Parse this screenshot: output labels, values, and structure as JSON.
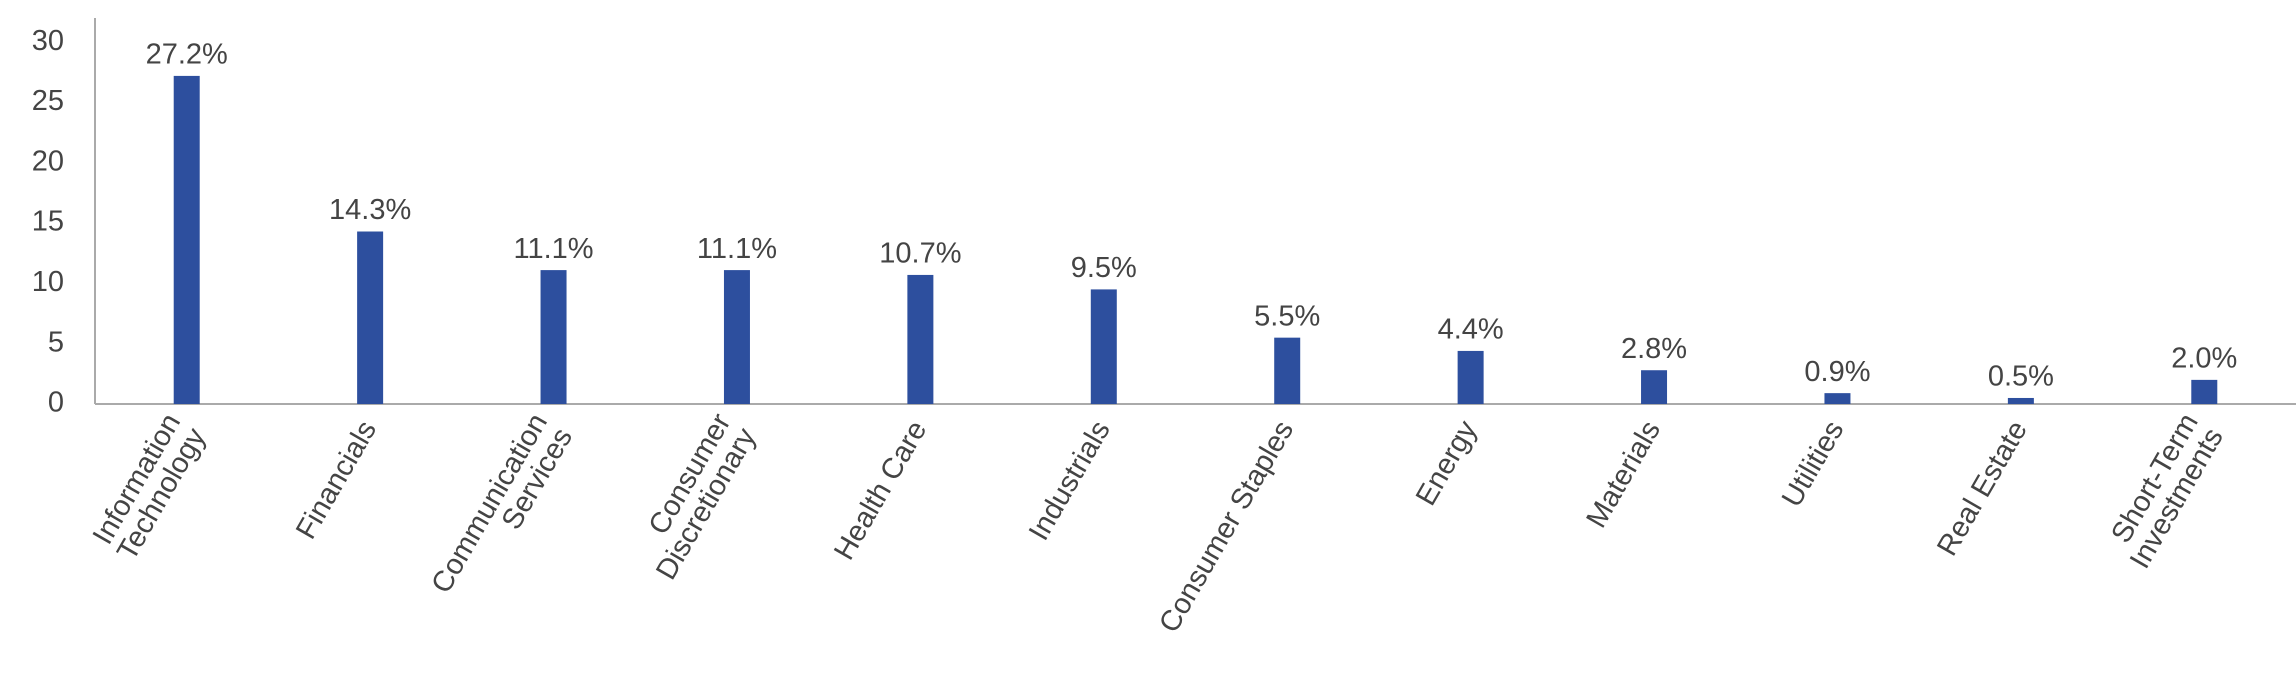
{
  "chart_data": {
    "type": "bar",
    "categories": [
      "Information\nTechnology",
      "Financials",
      "Communication\nServices",
      "Consumer\nDiscretionary",
      "Health Care",
      "Industrials",
      "Consumer Staples",
      "Energy",
      "Materials",
      "Utilities",
      "Real Estate",
      "Short-Term\nInvestments"
    ],
    "values": [
      27.2,
      14.3,
      11.1,
      11.1,
      10.7,
      9.5,
      5.5,
      4.4,
      2.8,
      0.9,
      0.5,
      2.0
    ],
    "value_labels": [
      "27.2%",
      "14.3%",
      "11.1%",
      "11.1%",
      "10.7%",
      "9.5%",
      "5.5%",
      "4.4%",
      "2.8%",
      "0.9%",
      "0.5%",
      "2.0%"
    ],
    "color": "#2d4f9e",
    "ylim": [
      0,
      32
    ],
    "yticks": [
      0,
      5,
      10,
      15,
      20,
      25,
      30
    ],
    "grid": false
  }
}
